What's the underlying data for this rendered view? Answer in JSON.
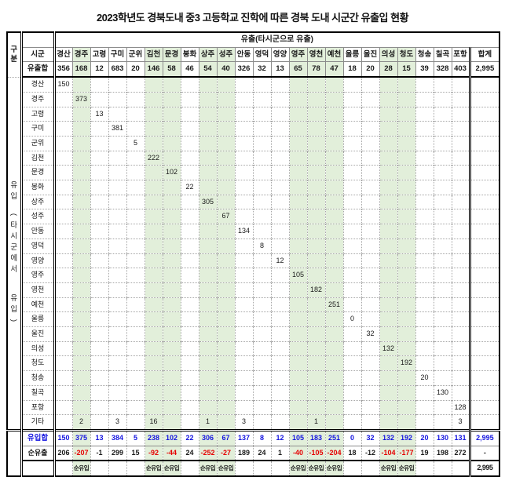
{
  "title": "2023학년도 경북도내 중3 고등학교 진학에 따른 경북 도내 시군간 유출입 현황",
  "header": {
    "corner_label": "구분",
    "sigun_label": "시군",
    "outflow_span_label": "유출(타시군으로 유출)",
    "inflow_side_label": "유입(타시군에서 유입)",
    "columns": [
      "경산",
      "경주",
      "고령",
      "구미",
      "군위",
      "김천",
      "문경",
      "봉화",
      "상주",
      "성주",
      "안동",
      "영덕",
      "영양",
      "영주",
      "영천",
      "예천",
      "울릉",
      "울진",
      "의성",
      "청도",
      "청송",
      "칠곡",
      "포항"
    ],
    "total_column": "합계",
    "outflow_total_label": "유출합",
    "outflow_totals": [
      "356",
      "168",
      "12",
      "683",
      "20",
      "146",
      "58",
      "46",
      "54",
      "40",
      "326",
      "32",
      "13",
      "65",
      "78",
      "47",
      "18",
      "20",
      "28",
      "15",
      "39",
      "328",
      "403"
    ],
    "outflow_grand_total": "2,995"
  },
  "green_column_indexes": [
    1,
    5,
    6,
    8,
    9,
    13,
    14,
    15,
    18,
    19
  ],
  "body": {
    "row_labels": [
      "경산",
      "경주",
      "고령",
      "구미",
      "군위",
      "김천",
      "문경",
      "봉화",
      "상주",
      "성주",
      "안동",
      "영덕",
      "영양",
      "영주",
      "영천",
      "예천",
      "울릉",
      "울진",
      "의성",
      "청도",
      "청송",
      "칠곡",
      "포항"
    ],
    "diagonal_values": [
      "150",
      "373",
      "13",
      "381",
      "5",
      "222",
      "102",
      "22",
      "305",
      "67",
      "134",
      "8",
      "12",
      "105",
      "182",
      "251",
      "0",
      "32",
      "132",
      "192",
      "20",
      "130",
      "128"
    ],
    "etc_row_label": "기타",
    "etc_row_values": {
      "1": "2",
      "3": "3",
      "5": "16",
      "8": "1",
      "10": "3",
      "14": "1",
      "22": "3"
    }
  },
  "footer": {
    "inflow_total_label": "유입합",
    "inflow_totals": [
      "150",
      "375",
      "13",
      "384",
      "5",
      "238",
      "102",
      "22",
      "306",
      "67",
      "137",
      "8",
      "12",
      "105",
      "183",
      "251",
      "0",
      "32",
      "132",
      "192",
      "20",
      "130",
      "131"
    ],
    "inflow_grand_total": "2,995",
    "net_outflow_label": "순유출",
    "net_outflow_values": [
      "206",
      "-207",
      "-1",
      "299",
      "15",
      "-92",
      "-44",
      "24",
      "-252",
      "-27",
      "189",
      "24",
      "1",
      "-40",
      "-105",
      "-204",
      "18",
      "-12",
      "-104",
      "-177",
      "19",
      "198",
      "272"
    ],
    "net_outflow_grand_total": "-",
    "net_red_indexes": [
      1,
      5,
      6,
      8,
      9,
      13,
      14,
      15,
      18,
      19
    ],
    "net_inflow_text": "순유입",
    "net_inflow_indexes": [
      1,
      5,
      6,
      8,
      9,
      13,
      14,
      15,
      18,
      19
    ],
    "bottom_grand_total": "2,995"
  },
  "colors": {
    "highlight_green": "#e2efda",
    "inflow_blue": "#1414e0",
    "negative_red": "#e50000"
  }
}
